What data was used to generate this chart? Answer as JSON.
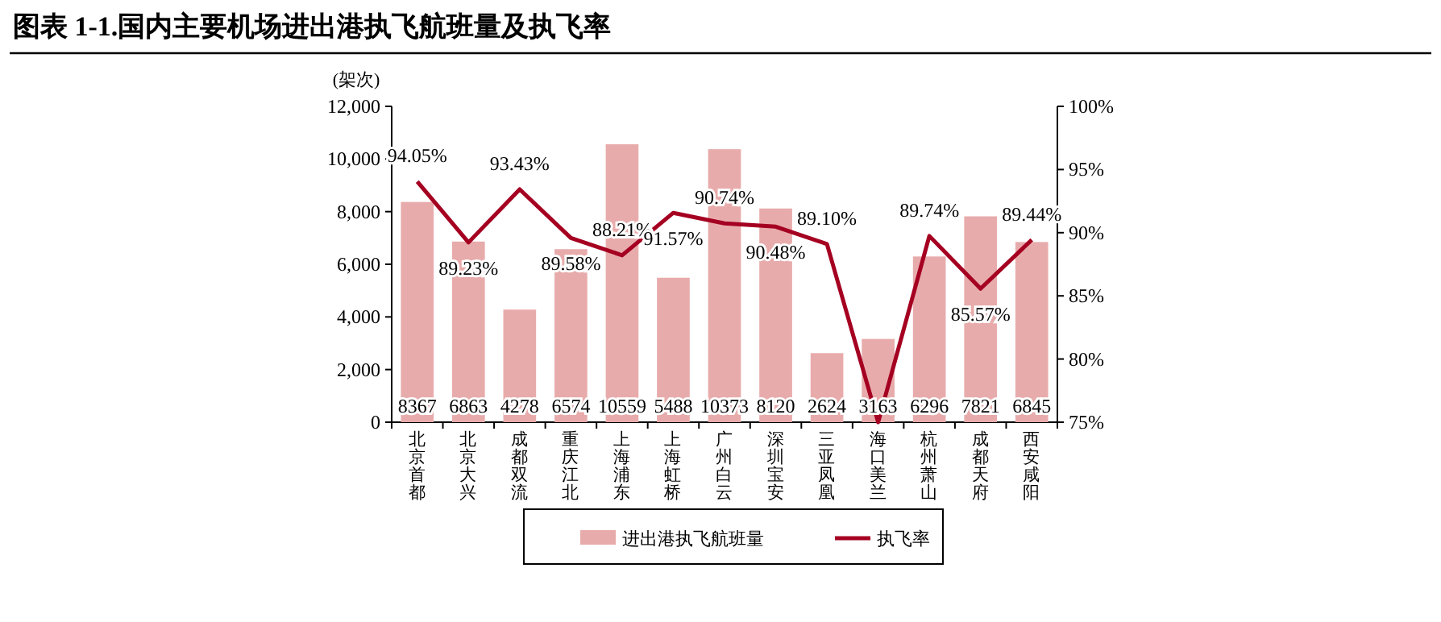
{
  "chart_data": {
    "type": "bar",
    "title": "图表 1-1.国内主要机场进出港执飞航班量及执飞率",
    "ylabel": "(架次)",
    "categories": [
      "北京首都",
      "北京大兴",
      "成都双流",
      "重庆江北",
      "上海浦东",
      "上海虹桥",
      "广州白云",
      "深圳宝安",
      "三亚凤凰",
      "海口美兰",
      "杭州萧山",
      "成都天府",
      "西安咸阳"
    ],
    "series": [
      {
        "name": "进出港执飞航班量",
        "color": "#e8abab",
        "values": [
          8367,
          6863,
          4278,
          6574,
          10559,
          5488,
          10373,
          8120,
          2624,
          3163,
          6296,
          7821,
          6845
        ],
        "value_labels": [
          "8367",
          "6863",
          "4278",
          "6574",
          "10559",
          "5488",
          "10373",
          "8120",
          "2624",
          "3163",
          "6296",
          "7821",
          "6845"
        ]
      },
      {
        "name": "执飞率",
        "type": "line",
        "axis": "y2",
        "color": "#a50021",
        "values": [
          94.05,
          89.23,
          93.43,
          89.58,
          88.21,
          91.57,
          90.74,
          90.48,
          89.1,
          75.0,
          89.74,
          85.57,
          89.44
        ],
        "value_labels": [
          "94.05%",
          "89.23%",
          "93.43%",
          "89.58%",
          "88.21%",
          "91.57%",
          "90.74%",
          "90.48%",
          "89.10%",
          null,
          "89.74%",
          "85.57%",
          "89.44%"
        ]
      }
    ],
    "ylim": [
      0,
      12000
    ],
    "yticks": [
      0,
      {
        "value": 2000,
        "label": "2,000"
      },
      {
        "value": 4000,
        "label": "4,000"
      },
      {
        "value": 6000,
        "label": "6,000"
      },
      {
        "value": 8000,
        "label": "8,000"
      },
      {
        "value": 10000,
        "label": "10,000"
      },
      {
        "value": 12000,
        "label": "12,000"
      }
    ],
    "y2lim": [
      75,
      100
    ],
    "y2ticks": [
      {
        "value": 75,
        "label": "75%"
      },
      {
        "value": 80,
        "label": "80%"
      },
      {
        "value": 85,
        "label": "85%"
      },
      {
        "value": 90,
        "label": "90%"
      },
      {
        "value": 95,
        "label": "95%"
      },
      {
        "value": 100,
        "label": "100%"
      }
    ],
    "legend": "bottom",
    "grid": false
  }
}
